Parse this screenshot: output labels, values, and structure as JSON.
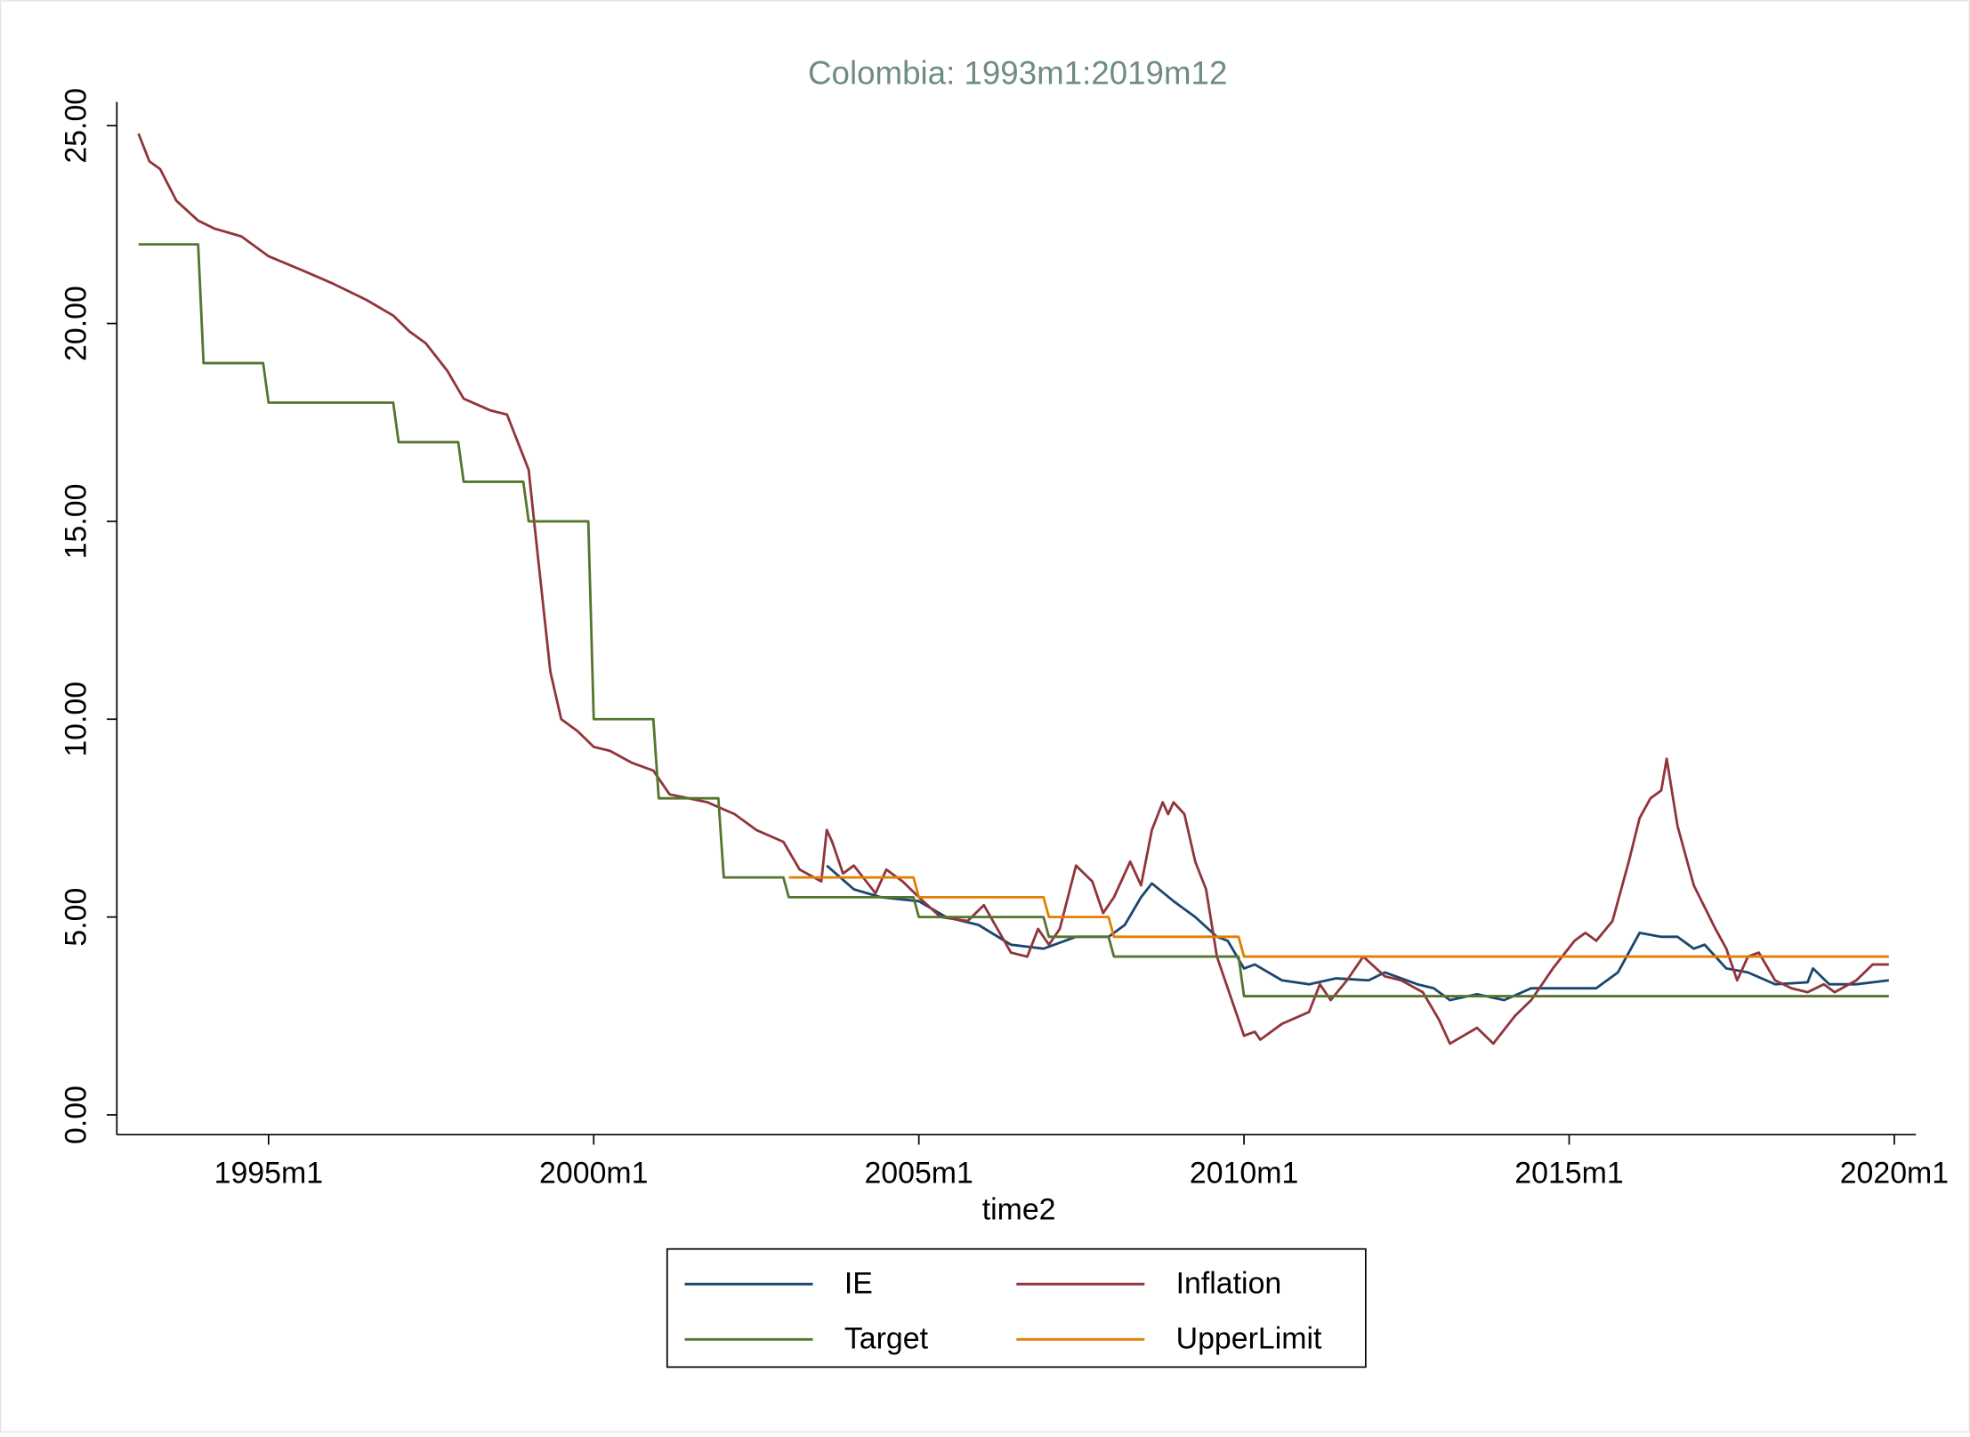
{
  "chart_data": {
    "type": "line",
    "title": "Colombia: 1993m1:2019m12",
    "x_label": "time2",
    "xlim": [
      392,
      724
    ],
    "ylim": [
      -0.5,
      25.6
    ],
    "xticks": [
      {
        "value": 420,
        "label": "1995m1"
      },
      {
        "value": 480,
        "label": "2000m1"
      },
      {
        "value": 540,
        "label": "2005m1"
      },
      {
        "value": 600,
        "label": "2010m1"
      },
      {
        "value": 660,
        "label": "2015m1"
      },
      {
        "value": 720,
        "label": "2020m1"
      }
    ],
    "yticks": [
      {
        "value": 0,
        "label": "0.00"
      },
      {
        "value": 5,
        "label": "5.00"
      },
      {
        "value": 10,
        "label": "10.00"
      },
      {
        "value": 15,
        "label": "15.00"
      },
      {
        "value": 20,
        "label": "20.00"
      },
      {
        "value": 25,
        "label": "25.00"
      }
    ],
    "grid": false,
    "legend_position": "bottom",
    "series": [
      {
        "name": "IE",
        "color": "#1a476f",
        "x": [
          523,
          528,
          533,
          540,
          545,
          551,
          557,
          563,
          569,
          575,
          578,
          581,
          583,
          587,
          591,
          595,
          597,
          600,
          602,
          607,
          612,
          617,
          623,
          626,
          632,
          635,
          638,
          643,
          648,
          653,
          660,
          665,
          669,
          673,
          677,
          680,
          683,
          685,
          689,
          693,
          698,
          704,
          705,
          708,
          713,
          719
        ],
        "values": [
          6.3,
          5.7,
          5.5,
          5.4,
          5.0,
          4.8,
          4.3,
          4.2,
          4.5,
          4.5,
          4.8,
          5.5,
          5.85,
          5.4,
          5.0,
          4.5,
          4.4,
          3.7,
          3.8,
          3.4,
          3.3,
          3.45,
          3.4,
          3.6,
          3.3,
          3.2,
          2.9,
          3.05,
          2.9,
          3.2,
          3.2,
          3.2,
          3.6,
          4.6,
          4.5,
          4.5,
          4.2,
          4.3,
          3.7,
          3.6,
          3.3,
          3.35,
          3.7,
          3.3,
          3.3,
          3.4
        ]
      },
      {
        "name": "Inflation",
        "color": "#90353b",
        "x": [
          396,
          398,
          400,
          403,
          407,
          410,
          415,
          420,
          427,
          432,
          438,
          443,
          446,
          449,
          453,
          456,
          461,
          464,
          466,
          468,
          469,
          472,
          474,
          477,
          480,
          483,
          487,
          491,
          494,
          501,
          506,
          510,
          515,
          518,
          522,
          523,
          524,
          526,
          528,
          532,
          534,
          537,
          540,
          544,
          549,
          552,
          557,
          560,
          562,
          564,
          566,
          569,
          572,
          574,
          576,
          579,
          581,
          583,
          585,
          586,
          587,
          589,
          591,
          593,
          595,
          597,
          600,
          602,
          603,
          607,
          612,
          614,
          616,
          619,
          622,
          626,
          629,
          633,
          636,
          638,
          643,
          646,
          650,
          653,
          657,
          661,
          663,
          665,
          668,
          671,
          673,
          675,
          677,
          678,
          680,
          683,
          687,
          689,
          691,
          693,
          695,
          698,
          701,
          704,
          707,
          709,
          713,
          716,
          719
        ],
        "values": [
          24.8,
          24.1,
          23.9,
          23.1,
          22.6,
          22.4,
          22.2,
          21.7,
          21.3,
          21.0,
          20.6,
          20.2,
          19.8,
          19.5,
          18.8,
          18.1,
          17.8,
          17.7,
          17.0,
          16.3,
          15.0,
          11.2,
          10.0,
          9.7,
          9.3,
          9.2,
          8.9,
          8.7,
          8.1,
          7.9,
          7.6,
          7.2,
          6.9,
          6.2,
          5.9,
          7.2,
          6.9,
          6.1,
          6.3,
          5.6,
          6.2,
          5.9,
          5.5,
          5.0,
          4.9,
          5.3,
          4.1,
          4.0,
          4.7,
          4.3,
          4.7,
          6.3,
          5.9,
          5.1,
          5.5,
          6.4,
          5.8,
          7.2,
          7.9,
          7.6,
          7.9,
          7.6,
          6.4,
          5.7,
          4.0,
          3.2,
          2.0,
          2.1,
          1.9,
          2.3,
          2.6,
          3.3,
          2.9,
          3.4,
          4.0,
          3.5,
          3.4,
          3.1,
          2.4,
          1.8,
          2.2,
          1.8,
          2.5,
          2.9,
          3.7,
          4.4,
          4.6,
          4.4,
          4.9,
          6.4,
          7.5,
          8.0,
          8.2,
          9.0,
          7.3,
          5.8,
          4.7,
          4.2,
          3.4,
          4.0,
          4.1,
          3.4,
          3.2,
          3.1,
          3.3,
          3.1,
          3.4,
          3.8,
          3.8
        ]
      },
      {
        "name": "Target",
        "color": "#55752f",
        "x": [
          396,
          407,
          408,
          419,
          420,
          443,
          444,
          455,
          456,
          467,
          468,
          479,
          480,
          491,
          492,
          503,
          504,
          515,
          516,
          539,
          540,
          563,
          564,
          575,
          576,
          599,
          600,
          719
        ],
        "values": [
          22,
          22,
          19,
          19,
          18,
          18,
          17,
          17,
          16,
          16,
          15,
          15,
          10,
          10,
          8,
          8,
          6,
          6,
          5.5,
          5.5,
          5,
          5,
          4.5,
          4.5,
          4,
          4,
          3,
          3
        ]
      },
      {
        "name": "UpperLimit",
        "color": "#e37e00",
        "x": [
          516,
          539,
          540,
          563,
          564,
          575,
          576,
          599,
          600,
          719
        ],
        "values": [
          6,
          6,
          5.5,
          5.5,
          5,
          5,
          4.5,
          4.5,
          4,
          4
        ]
      }
    ]
  }
}
